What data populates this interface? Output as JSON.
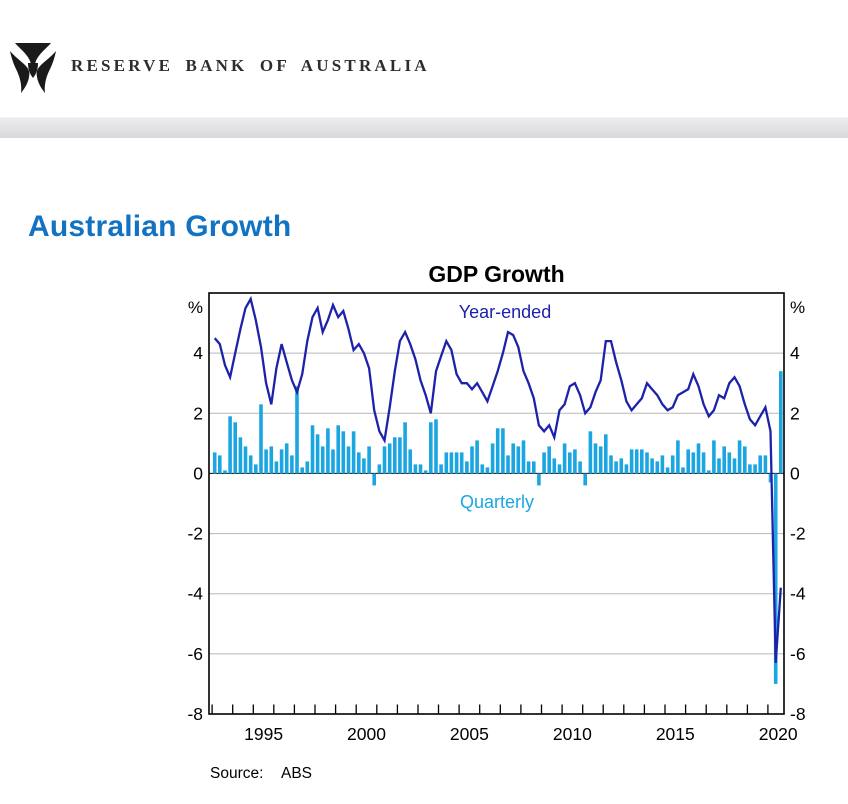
{
  "header": {
    "bank_name": "RESERVE BANK OF AUSTRALIA"
  },
  "page": {
    "title": "Australian Growth"
  },
  "chart": {
    "title": "GDP Growth",
    "unit_left": "%",
    "unit_right": "%",
    "line_label": "Year-ended",
    "bar_label": "Quarterly",
    "source_label": "Source:",
    "source_value": "ABS",
    "colors": {
      "line": "#1E22AA",
      "bars": "#1BA6E2",
      "grid": "#b8b8b8",
      "axis": "#000000",
      "title_text": "#000000"
    }
  },
  "chart_data": {
    "type": "bar+line",
    "title": "GDP Growth",
    "unit": "%",
    "frequency": "quarterly",
    "start_year": 1993,
    "start_quarter": 1,
    "end_year": 2020,
    "end_quarter": 3,
    "ylim": [
      -8,
      6
    ],
    "y_tick_values": [
      4,
      2,
      0,
      -2,
      -4,
      -6,
      -8
    ],
    "y_grid_values": [
      4,
      2,
      -2,
      -4,
      -6
    ],
    "x_label_years": [
      1995,
      2000,
      2005,
      2010,
      2015,
      2020
    ],
    "grid": true,
    "legend_position": "inline-annotations",
    "series": [
      {
        "name": "Year-ended",
        "type": "line",
        "color": "#1E22AA",
        "values": [
          4.5,
          4.3,
          3.6,
          3.2,
          4.0,
          4.8,
          5.5,
          5.8,
          5.1,
          4.2,
          3.0,
          2.3,
          3.5,
          4.3,
          3.7,
          3.1,
          2.7,
          3.3,
          4.4,
          5.2,
          5.5,
          4.7,
          5.1,
          5.6,
          5.2,
          5.4,
          4.8,
          4.1,
          4.3,
          4.0,
          3.5,
          2.1,
          1.4,
          1.1,
          2.2,
          3.4,
          4.4,
          4.7,
          4.3,
          3.8,
          3.1,
          2.6,
          2.0,
          3.4,
          3.9,
          4.4,
          4.1,
          3.3,
          3.0,
          3.0,
          2.8,
          3.0,
          2.7,
          2.4,
          2.9,
          3.4,
          4.0,
          4.7,
          4.6,
          4.2,
          3.4,
          3.0,
          2.5,
          1.6,
          1.4,
          1.6,
          1.2,
          2.1,
          2.3,
          2.9,
          3.0,
          2.6,
          2.0,
          2.2,
          2.7,
          3.1,
          4.4,
          4.4,
          3.7,
          3.1,
          2.4,
          2.1,
          2.3,
          2.5,
          3.0,
          2.8,
          2.6,
          2.3,
          2.1,
          2.2,
          2.6,
          2.7,
          2.8,
          3.3,
          2.9,
          2.3,
          1.9,
          2.1,
          2.6,
          2.5,
          3.0,
          3.2,
          2.9,
          2.3,
          1.8,
          1.6,
          1.9,
          2.2,
          1.4,
          -6.3,
          -3.8
        ]
      },
      {
        "name": "Quarterly",
        "type": "bar",
        "color": "#1BA6E2",
        "values": [
          0.7,
          0.6,
          0.1,
          1.9,
          1.7,
          1.2,
          0.9,
          0.6,
          0.3,
          2.3,
          0.8,
          0.9,
          0.4,
          0.8,
          1.0,
          0.6,
          2.9,
          0.2,
          0.4,
          1.6,
          1.3,
          0.9,
          1.5,
          0.8,
          1.6,
          1.4,
          0.9,
          1.4,
          0.7,
          0.5,
          0.9,
          -0.4,
          0.3,
          0.9,
          1.0,
          1.2,
          1.2,
          1.7,
          0.8,
          0.3,
          0.3,
          0.1,
          1.7,
          1.8,
          0.3,
          0.7,
          0.7,
          0.7,
          0.7,
          0.4,
          0.9,
          1.1,
          0.3,
          0.2,
          1.0,
          1.5,
          1.5,
          0.6,
          1.0,
          0.9,
          1.1,
          0.4,
          0.4,
          -0.4,
          0.7,
          0.9,
          0.5,
          0.3,
          1.0,
          0.7,
          0.8,
          0.4,
          -0.4,
          1.4,
          1.0,
          0.9,
          1.3,
          0.6,
          0.4,
          0.5,
          0.3,
          0.8,
          0.8,
          0.8,
          0.7,
          0.5,
          0.4,
          0.6,
          0.2,
          0.6,
          1.1,
          0.2,
          0.8,
          0.7,
          1.0,
          0.7,
          0.1,
          1.1,
          0.5,
          0.9,
          0.7,
          0.5,
          1.1,
          0.9,
          0.3,
          0.3,
          0.6,
          0.6,
          -0.3,
          -7.0,
          3.4
        ]
      }
    ]
  }
}
